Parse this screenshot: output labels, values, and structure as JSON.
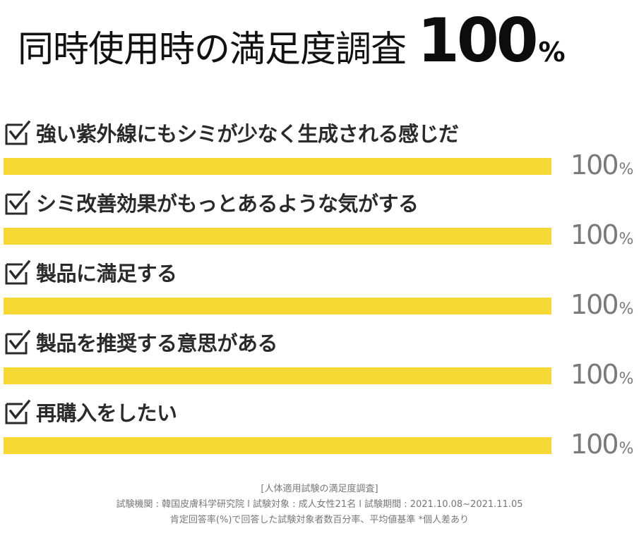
{
  "title": {
    "text": "同時使用時の満足度調査",
    "value": "100",
    "unit": "%"
  },
  "chart_data": {
    "type": "bar",
    "orientation": "horizontal",
    "title": "同時使用時の満足度調査 100%",
    "categories": [
      "強い紫外線にもシミが少なく生成される感じだ",
      "シミ改善効果がもっとあるような気がする",
      "製品に満足する",
      "製品を推奨する意思がある",
      "再購入をしたい"
    ],
    "values": [
      100,
      100,
      100,
      100,
      100
    ],
    "value_labels": [
      "100",
      "100",
      "100",
      "100",
      "100"
    ],
    "unit": "%",
    "xlim": [
      0,
      100
    ],
    "bar_color": "#f6d935",
    "grid": false,
    "legend": "none"
  },
  "icons": {
    "item_marker": "checkbox-checked-icon"
  },
  "notes": {
    "line1": "[人体適用試験の満足度調査]",
    "line2": "試験機関 : 韓国皮膚科学研究院 l 試験対象 : 成人女性21名 l 試験期間 : 2021.10.08~2021.11.05",
    "line3": "肯定回答率(%)で回答した試験対象者数百分率、平均値基準 *個人差あり"
  }
}
